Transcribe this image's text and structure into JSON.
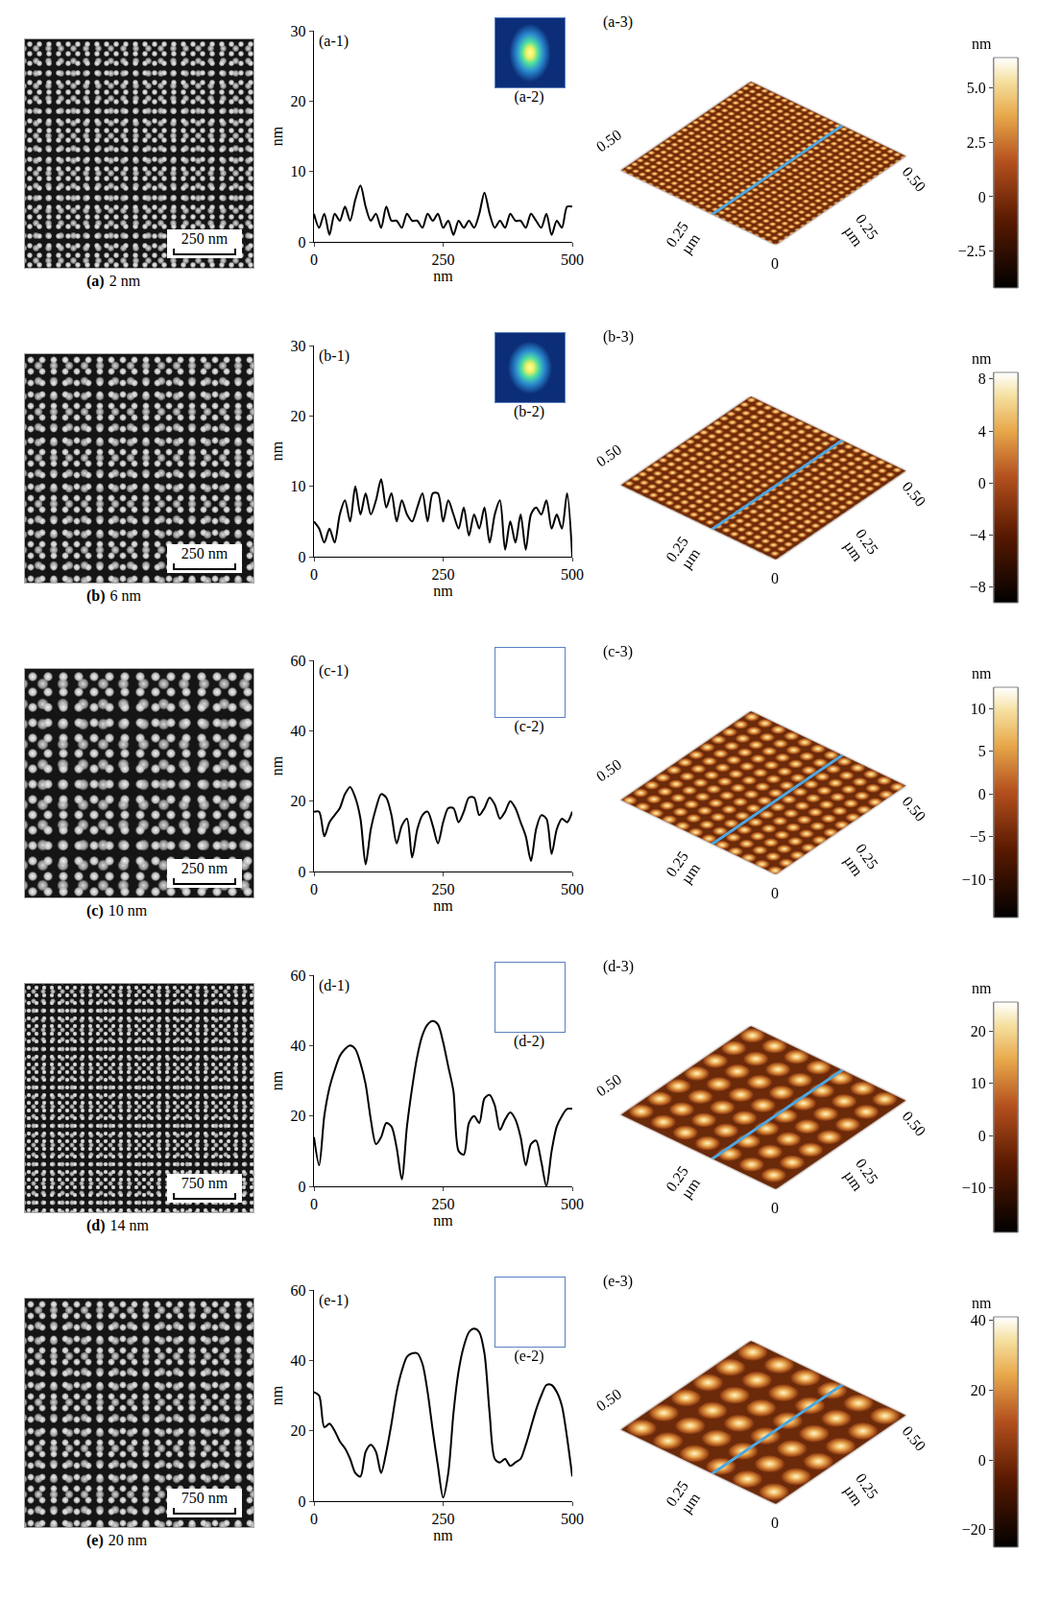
{
  "chart_data": [
    {
      "type": "line",
      "title": "(a-1)",
      "x_label": "nm",
      "y_label": "nm",
      "x": [
        0,
        10,
        20,
        30,
        40,
        50,
        60,
        70,
        80,
        90,
        100,
        110,
        120,
        130,
        140,
        150,
        160,
        170,
        180,
        190,
        200,
        210,
        220,
        230,
        240,
        250,
        260,
        270,
        280,
        290,
        300,
        310,
        320,
        330,
        340,
        350,
        360,
        370,
        380,
        390,
        400,
        410,
        420,
        430,
        440,
        450,
        460,
        470,
        480,
        490,
        500
      ],
      "values": [
        4,
        2,
        4,
        1,
        4,
        3,
        5,
        3,
        6,
        8,
        5,
        3,
        4,
        2,
        5,
        3,
        3,
        2,
        4,
        3,
        3,
        2,
        4,
        3,
        4,
        2,
        3,
        1,
        3,
        2,
        3,
        2,
        4,
        7,
        4,
        2,
        3,
        2,
        4,
        3,
        3,
        2,
        4,
        3,
        2,
        4,
        1,
        3,
        2,
        5,
        5
      ],
      "xlim": [
        0,
        500
      ],
      "xticks": [
        0,
        250,
        500
      ],
      "ylim": [
        0,
        30
      ],
      "yticks": [
        0,
        10,
        20,
        30
      ]
    },
    {
      "type": "line",
      "title": "(b-1)",
      "x_label": "nm",
      "y_label": "nm",
      "x": [
        0,
        10,
        20,
        30,
        40,
        50,
        60,
        70,
        80,
        90,
        100,
        110,
        120,
        130,
        140,
        150,
        160,
        170,
        180,
        190,
        200,
        210,
        220,
        230,
        240,
        250,
        260,
        270,
        280,
        290,
        300,
        310,
        320,
        330,
        340,
        350,
        360,
        370,
        380,
        390,
        400,
        410,
        420,
        430,
        440,
        450,
        460,
        470,
        480,
        490,
        500
      ],
      "values": [
        5,
        4,
        2,
        4,
        2,
        6,
        8,
        5,
        10,
        6,
        9,
        6,
        8,
        11,
        7,
        9,
        5,
        8,
        6,
        5,
        7,
        9,
        5,
        9,
        9,
        5,
        8,
        6,
        4,
        7,
        3,
        6,
        4,
        7,
        2,
        6,
        8,
        1,
        5,
        2,
        6,
        1,
        6,
        7,
        6,
        8,
        4,
        6,
        4,
        9,
        0
      ],
      "xlim": [
        0,
        500
      ],
      "xticks": [
        0,
        250,
        500
      ],
      "ylim": [
        0,
        30
      ],
      "yticks": [
        0,
        10,
        20,
        30
      ]
    },
    {
      "type": "line",
      "title": "(c-1)",
      "x_label": "nm",
      "y_label": "nm",
      "x": [
        0,
        10,
        20,
        30,
        40,
        50,
        60,
        70,
        80,
        90,
        100,
        110,
        120,
        130,
        140,
        150,
        160,
        170,
        180,
        190,
        200,
        210,
        220,
        230,
        240,
        250,
        260,
        270,
        280,
        290,
        300,
        310,
        320,
        330,
        340,
        350,
        360,
        370,
        380,
        390,
        400,
        410,
        420,
        430,
        440,
        450,
        460,
        470,
        480,
        490,
        500
      ],
      "values": [
        17,
        17,
        10,
        14,
        16,
        18,
        22,
        24,
        21,
        15,
        2,
        12,
        18,
        22,
        21,
        16,
        8,
        13,
        15,
        4,
        12,
        16,
        17,
        13,
        8,
        14,
        18,
        18,
        14,
        17,
        21,
        21,
        16,
        18,
        21,
        19,
        15,
        17,
        20,
        18,
        14,
        10,
        3,
        12,
        16,
        15,
        5,
        12,
        15,
        14,
        17
      ],
      "xlim": [
        0,
        500
      ],
      "xticks": [
        0,
        250,
        500
      ],
      "ylim": [
        0,
        60
      ],
      "yticks": [
        0,
        20,
        40,
        60
      ]
    },
    {
      "type": "line",
      "title": "(d-1)",
      "x_label": "nm",
      "y_label": "nm",
      "x": [
        0,
        10,
        20,
        30,
        40,
        50,
        60,
        70,
        80,
        90,
        100,
        110,
        120,
        130,
        140,
        150,
        160,
        170,
        180,
        190,
        200,
        210,
        220,
        230,
        240,
        250,
        260,
        270,
        280,
        290,
        300,
        310,
        320,
        330,
        340,
        350,
        360,
        370,
        380,
        390,
        400,
        410,
        420,
        430,
        440,
        450,
        460,
        470,
        480,
        490,
        500
      ],
      "values": [
        14,
        6,
        20,
        28,
        33,
        37,
        39,
        40,
        39,
        35,
        29,
        19,
        12,
        14,
        18,
        17,
        11,
        2,
        17,
        28,
        37,
        43,
        46,
        47,
        46,
        41,
        34,
        27,
        10,
        9,
        18,
        20,
        18,
        25,
        26,
        23,
        16,
        19,
        21,
        19,
        14,
        6,
        12,
        13,
        7,
        0,
        10,
        17,
        20,
        22,
        22
      ],
      "xlim": [
        0,
        500
      ],
      "xticks": [
        0,
        250,
        500
      ],
      "ylim": [
        0,
        60
      ],
      "yticks": [
        0,
        20,
        40,
        60
      ]
    },
    {
      "type": "line",
      "title": "(e-1)",
      "x_label": "nm",
      "y_label": "nm",
      "x": [
        0,
        10,
        20,
        30,
        40,
        50,
        60,
        70,
        80,
        90,
        100,
        110,
        120,
        130,
        140,
        150,
        160,
        170,
        180,
        190,
        200,
        210,
        220,
        230,
        240,
        250,
        260,
        270,
        280,
        290,
        300,
        310,
        320,
        330,
        340,
        350,
        360,
        370,
        380,
        390,
        400,
        410,
        420,
        430,
        440,
        450,
        460,
        470,
        480,
        490,
        500
      ],
      "values": [
        31,
        30,
        21,
        22,
        20,
        17,
        15,
        12,
        8,
        7,
        14,
        16,
        14,
        8,
        14,
        22,
        31,
        37,
        41,
        42,
        42,
        39,
        31,
        20,
        10,
        1,
        8,
        25,
        37,
        44,
        48,
        49,
        48,
        42,
        25,
        12,
        11,
        12,
        10,
        11,
        12,
        16,
        21,
        26,
        30,
        33,
        33,
        31,
        27,
        18,
        7
      ],
      "xlim": [
        0,
        500
      ],
      "xticks": [
        0,
        250,
        500
      ],
      "ylim": [
        0,
        60
      ],
      "yticks": [
        0,
        20,
        40,
        60
      ]
    }
  ],
  "figure": {
    "rows": [
      {
        "label": "(a)",
        "caption": "2 nm",
        "scale_bar": "250 nm",
        "fft_label": "(a-2)",
        "afm_label": "(a-3)",
        "afm_axis_labels": {
          "left_end": "0.50",
          "left_mid": "0.25",
          "right_mid": "0.25",
          "right_end": "0.50",
          "origin": "0",
          "unit": "µm"
        },
        "colorbar": {
          "title": "nm",
          "range": [
            -4.2,
            6.4
          ],
          "ticks": [
            {
              "value": -2.5,
              "label": "−2.5"
            },
            0,
            2.5,
            {
              "value": 5,
              "label": "5.0"
            }
          ]
        }
      },
      {
        "label": "(b)",
        "caption": "6 nm",
        "scale_bar": "250 nm",
        "fft_label": "(b-2)",
        "afm_label": "(b-3)",
        "afm_axis_labels": {
          "left_end": "0.50",
          "left_mid": "0.25",
          "right_mid": "0.25",
          "right_end": "0.50",
          "origin": "0",
          "unit": "µm"
        },
        "colorbar": {
          "title": "nm",
          "range": [
            -9.2,
            8.5
          ],
          "ticks": [
            {
              "value": -8,
              "label": "−8"
            },
            {
              "value": -4,
              "label": "−4"
            },
            0,
            4,
            8
          ]
        }
      },
      {
        "label": "(c)",
        "caption": "10 nm",
        "scale_bar": "250 nm",
        "fft_label": "(c-2)",
        "afm_label": "(c-3)",
        "afm_axis_labels": {
          "left_end": "0.50",
          "left_mid": "0.25",
          "right_mid": "0.25",
          "right_end": "0.50",
          "origin": "0",
          "unit": "µm"
        },
        "colorbar": {
          "title": "nm",
          "range": [
            -14.5,
            12.5
          ],
          "ticks": [
            {
              "value": -10,
              "label": "−10"
            },
            {
              "value": -5,
              "label": "−5"
            },
            0,
            5,
            10
          ]
        }
      },
      {
        "label": "(d)",
        "caption": "14 nm",
        "scale_bar": "750 nm",
        "fft_label": "(d-2)",
        "afm_label": "(d-3)",
        "afm_axis_labels": {
          "left_end": "0.50",
          "left_mid": "0.25",
          "right_mid": "0.25",
          "right_end": "0.50",
          "origin": "0",
          "unit": "µm"
        },
        "colorbar": {
          "title": "nm",
          "range": [
            -18.5,
            25.5
          ],
          "ticks": [
            {
              "value": -10,
              "label": "−10"
            },
            0,
            10,
            20
          ]
        }
      },
      {
        "label": "(e)",
        "caption": "20 nm",
        "scale_bar": "750 nm",
        "fft_label": "(e-2)",
        "afm_label": "(e-3)",
        "afm_axis_labels": {
          "left_end": "0.50",
          "left_mid": "0.25",
          "right_mid": "0.25",
          "right_end": "0.50",
          "origin": "0",
          "unit": "µm"
        },
        "colorbar": {
          "title": "nm",
          "range": [
            -25,
            41
          ],
          "ticks": [
            {
              "value": -20,
              "label": "−20"
            },
            0,
            20,
            40
          ]
        }
      }
    ]
  }
}
